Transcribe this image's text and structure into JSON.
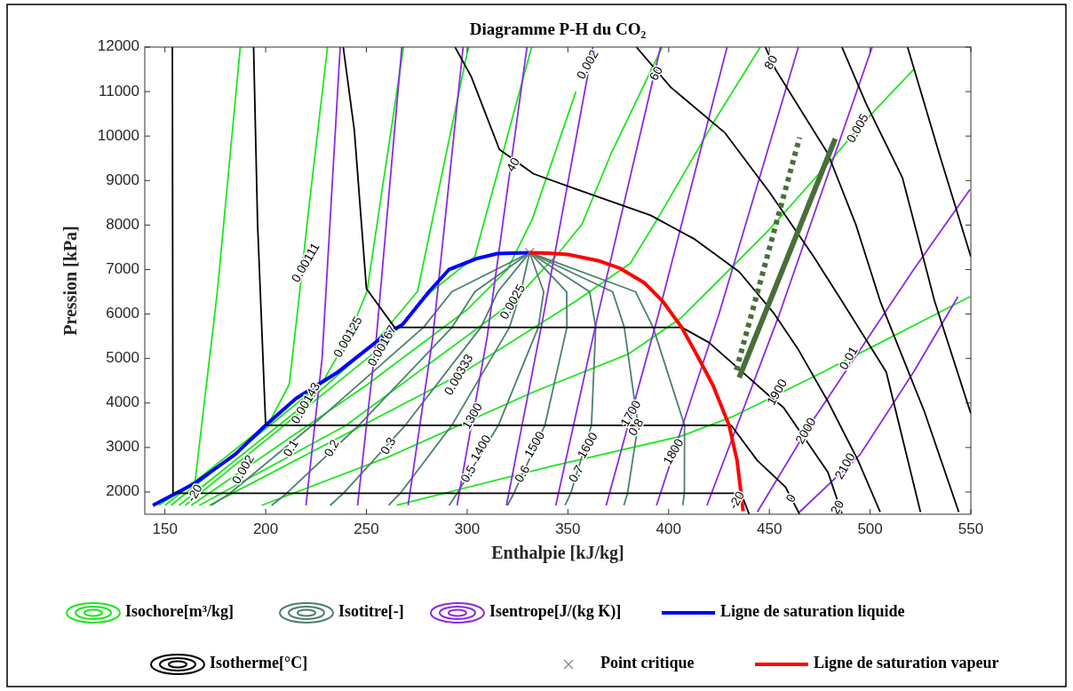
{
  "chart_data": {
    "type": "line",
    "title": "Diagramme P-H du CO₂",
    "xlabel": "Enthalpie [kJ/kg]",
    "ylabel": "Pression [kPa]",
    "xlim": [
      140,
      550
    ],
    "ylim": [
      1500,
      12000
    ],
    "xticks": [
      150,
      200,
      250,
      300,
      350,
      400,
      450,
      500,
      550
    ],
    "yticks": [
      2000,
      3000,
      4000,
      5000,
      6000,
      7000,
      8000,
      9000,
      10000,
      11000,
      12000
    ],
    "legend": "bottom",
    "series": [
      {
        "name": "Isochore[m³/kg]",
        "color": "#1ee61e",
        "x": [
          147,
          165,
          176,
          187.4
        ],
        "values": [
          1700,
          2250,
          6500,
          12000
        ]
      },
      {
        "color": "#1ee61e",
        "x": [
          150,
          201.7,
          211.7,
          215.7,
          221,
          230.7
        ],
        "values": [
          1700,
          3560,
          4420,
          6010,
          8210,
          12000
        ]
      },
      {
        "color": "#1ee61e",
        "x": [
          153,
          228,
          241,
          250.3,
          268.4
        ],
        "values": [
          1700,
          4450,
          5480,
          6510,
          12000
        ]
      },
      {
        "color": "#1ee61e",
        "x": [
          157,
          220,
          255,
          275.4,
          300.6
        ],
        "values": [
          1700,
          3990,
          5400,
          6510,
          12000
        ]
      },
      {
        "color": "#1ee61e",
        "x": [
          160,
          258,
          282,
          303.7,
          332
        ],
        "values": [
          1700,
          5280,
          6500,
          7280,
          12000
        ]
      },
      {
        "color": "#1ee61e",
        "x": [
          163,
          188.9,
          250,
          300,
          320,
          332.4,
          354
        ],
        "values": [
          1700,
          2500,
          4400,
          6100,
          7000,
          8140,
          11000
        ]
      },
      {
        "color": "#1ee61e",
        "x": [
          167,
          240,
          322.7,
          336.6,
          345,
          357,
          371.5,
          396.8
        ],
        "values": [
          1700,
          3500,
          6270,
          6950,
          7350,
          8020,
          9610,
          12000
        ]
      },
      {
        "color": "#1ee61e",
        "x": [
          172,
          296,
          354,
          381,
          395.4,
          423.5,
          445.5
        ],
        "values": [
          1700,
          4630,
          6290,
          7140,
          8210,
          10400,
          12000
        ]
      },
      {
        "color": "#1ee61e",
        "x": [
          198,
          261,
          332.5,
          380,
          405.8,
          423.4,
          450,
          482,
          494,
          507,
          521.7
        ],
        "values": [
          1700,
          2790,
          4240,
          5100,
          5900,
          6690,
          7900,
          9530,
          10170,
          10800,
          11500
        ]
      },
      {
        "color": "#1ee61e",
        "x": [
          265,
          341,
          405.8,
          432,
          450,
          476.7,
          489.5,
          504,
          549.6
        ],
        "values": [
          1700,
          2570,
          3250,
          3700,
          4100,
          4700,
          5000,
          5330,
          6390
        ]
      },
      {
        "name": "Isotitre[-]",
        "color": "#4d7f6e",
        "x": [
          331,
          292.4,
          278.3,
          223.1,
          182.2,
          173
        ],
        "values": [
          7380,
          6500,
          5700,
          3500,
          1970,
          1700
        ]
      },
      {
        "color": "#4d7f6e",
        "x": [
          331,
          303.8,
          292.5,
          246.2,
          210.4,
          203
        ],
        "values": [
          7380,
          6500,
          5700,
          3500,
          1970,
          1700
        ]
      },
      {
        "color": "#4d7f6e",
        "x": [
          331,
          315.2,
          306.8,
          269.3,
          238.6,
          232
        ],
        "values": [
          7380,
          6500,
          5700,
          3500,
          1970,
          1700
        ]
      },
      {
        "color": "#4d7f6e",
        "x": [
          331,
          326.6,
          321,
          292.4,
          266.8,
          261
        ],
        "values": [
          7380,
          6500,
          5700,
          3500,
          1970,
          1700
        ]
      },
      {
        "color": "#4d7f6e",
        "x": [
          331,
          338,
          335.3,
          315.5,
          295,
          291
        ],
        "values": [
          7380,
          6500,
          5700,
          3500,
          1970,
          1700
        ]
      },
      {
        "color": "#4d7f6e",
        "x": [
          331,
          349.4,
          349.5,
          338.6,
          323.2,
          320
        ],
        "values": [
          7380,
          6500,
          5700,
          3500,
          1970,
          1700
        ]
      },
      {
        "color": "#4d7f6e",
        "x": [
          331,
          360.8,
          363.8,
          361.7,
          351.4,
          348.6
        ],
        "values": [
          7380,
          6500,
          5700,
          3500,
          1970,
          1700
        ]
      },
      {
        "color": "#4d7f6e",
        "x": [
          331,
          372.2,
          378,
          384.8,
          379.6,
          377.8
        ],
        "values": [
          7380,
          6500,
          5700,
          3500,
          1970,
          1700
        ]
      },
      {
        "color": "#4d7f6e",
        "x": [
          331,
          383.6,
          392.3,
          407.9,
          407.8,
          407
        ],
        "values": [
          7380,
          6500,
          5700,
          3500,
          1970,
          1700
        ]
      },
      {
        "name": "Isentrope[J/(kg K)]",
        "color": "#8a2be2",
        "x": [
          220,
          228,
          237
        ],
        "values": [
          1700,
          5000,
          12000
        ]
      },
      {
        "color": "#8a2be2",
        "x": [
          245.6,
          255,
          267.6
        ],
        "values": [
          1700,
          5500,
          12000
        ]
      },
      {
        "color": "#8a2be2",
        "x": [
          270.7,
          283,
          298
        ],
        "values": [
          1700,
          5500,
          12000
        ]
      },
      {
        "color": "#8a2be2",
        "x": [
          295,
          310,
          329.7
        ],
        "values": [
          1700,
          5500,
          12000
        ]
      },
      {
        "color": "#8a2be2",
        "x": [
          319.5,
          338,
          362.4
        ],
        "values": [
          1700,
          6000,
          12000
        ]
      },
      {
        "color": "#8a2be2",
        "x": [
          344,
          365,
          396
        ],
        "values": [
          1700,
          6000,
          12000
        ]
      },
      {
        "color": "#8a2be2",
        "x": [
          369,
          395,
          429
        ],
        "values": [
          1700,
          6000,
          12000
        ]
      },
      {
        "color": "#8a2be2",
        "x": [
          394,
          425,
          464.4
        ],
        "values": [
          1700,
          6000,
          12000
        ]
      },
      {
        "color": "#8a2be2",
        "x": [
          419,
          455,
          501
        ],
        "values": [
          1700,
          6000,
          12000
        ]
      },
      {
        "color": "#8a2be2",
        "x": [
          444,
          470,
          521.6,
          549.6
        ],
        "values": [
          1550,
          3500,
          7000,
          8800
        ]
      },
      {
        "color": "#8a2be2",
        "x": [
          465,
          495,
          521.6,
          543.6
        ],
        "values": [
          1550,
          2840,
          4700,
          6390
        ]
      },
      {
        "name": "Ligne de saturation liquide",
        "color": "#0000ff",
        "x": [
          144,
          165,
          185,
          200,
          215,
          236,
          260,
          268,
          281,
          291,
          305,
          315,
          331
        ],
        "values": [
          1700,
          2200,
          2850,
          3500,
          4100,
          4700,
          5555,
          5766,
          6500,
          7000,
          7250,
          7360,
          7380
        ]
      },
      {
        "name": "Isotherme[°C]",
        "color": "#000000",
        "x": [
          153.7,
          154,
          436,
          440
        ],
        "values": [
          12000,
          1970,
          1970,
          1500
        ]
      },
      {
        "color": "#000000",
        "x": [
          194,
          196,
          200,
          431,
          444,
          458,
          465
        ],
        "values": [
          12000,
          8000,
          3500,
          3500,
          2710,
          2110,
          1500
        ]
      },
      {
        "color": "#000000",
        "x": [
          238.5,
          244,
          250,
          264,
          406.5,
          420,
          435,
          450,
          457,
          479,
          486
        ],
        "values": [
          12000,
          10130,
          6570,
          5700,
          5700,
          5360,
          4760,
          4160,
          3900,
          2450,
          1520
        ]
      },
      {
        "color": "#000000",
        "x": [
          294,
          302,
          316,
          333,
          354,
          391,
          413,
          435,
          452,
          464,
          479,
          494,
          505
        ],
        "values": [
          12000,
          11340,
          9700,
          9150,
          8810,
          8220,
          7680,
          6950,
          6030,
          5230,
          4040,
          2710,
          1550
        ]
      },
      {
        "color": "#000000",
        "x": [
          384,
          401,
          428,
          450,
          472,
          486,
          508,
          525
        ],
        "values": [
          12000,
          11100,
          10070,
          8740,
          7290,
          6290,
          4700,
          1550
        ]
      },
      {
        "color": "#000000",
        "x": [
          448,
          453,
          479,
          493,
          505,
          527,
          544
        ],
        "values": [
          12000,
          11500,
          9610,
          8000,
          6290,
          3800,
          1550
        ]
      },
      {
        "color": "#000000",
        "x": [
          486,
          498,
          516,
          532,
          550
        ],
        "values": [
          12000,
          10730,
          9070,
          6290,
          3760
        ]
      },
      {
        "color": "#000000",
        "x": [
          518.6,
          535,
          550
        ],
        "values": [
          12000,
          9500,
          7290
        ]
      },
      {
        "name": "Point critique",
        "type": "scatter",
        "marker": "cross",
        "color": "#808080",
        "x": [
          331
        ],
        "values": [
          7380
        ]
      },
      {
        "name": "Ligne de saturation vapeur",
        "color": "#ff0000",
        "x": [
          331,
          340,
          350,
          365,
          376,
          388,
          397,
          406.5,
          415,
          422,
          430,
          434,
          437
        ],
        "values": [
          7380,
          7370,
          7340,
          7200,
          7025,
          6700,
          6290,
          5700,
          5000,
          4400,
          3500,
          2700,
          1570
        ]
      },
      {
        "color": "#4a6e3a",
        "x": [
          435,
          482.7
        ],
        "values": [
          4570,
          9940
        ]
      },
      {
        "color": "#4a6e3a",
        "line_style": "dotted",
        "x": [
          433.6,
          465
        ],
        "values": [
          4740,
          9970
        ]
      }
    ],
    "annotations": [
      {
        "text": "0.00111",
        "x": 220,
        "y": 7150
      },
      {
        "text": "0.00125",
        "x": 241,
        "y": 5480
      },
      {
        "text": "0.00143",
        "x": 220,
        "y": 3990
      },
      {
        "text": "0.00167",
        "x": 258,
        "y": 5280
      },
      {
        "text": "0.002",
        "x": 189,
        "y": 2500
      },
      {
        "text": "0.0025",
        "x": 322.7,
        "y": 6270
      },
      {
        "text": "0.00333",
        "x": 296,
        "y": 4630
      },
      {
        "text": "0.005",
        "x": 494,
        "y": 10170
      },
      {
        "text": "0.01",
        "x": 489.5,
        "y": 5000
      },
      {
        "text": "0.002",
        "x": 360,
        "y": 11600
      },
      {
        "text": "0.1",
        "x": 212.7,
        "y": 2980
      },
      {
        "text": "0.2",
        "x": 233,
        "y": 2980
      },
      {
        "text": "0.3",
        "x": 261,
        "y": 3030
      },
      {
        "text": "0.5",
        "x": 300.8,
        "y": 2400
      },
      {
        "text": "0.6",
        "x": 327.6,
        "y": 2400
      },
      {
        "text": "0.7",
        "x": 354.3,
        "y": 2400
      },
      {
        "text": "0.8",
        "x": 384,
        "y": 3450
      },
      {
        "text": "1300",
        "x": 302.8,
        "y": 3700
      },
      {
        "text": "1400",
        "x": 307,
        "y": 2980
      },
      {
        "text": "1500",
        "x": 333.7,
        "y": 3060
      },
      {
        "text": "1600",
        "x": 360,
        "y": 3040
      },
      {
        "text": "1700",
        "x": 381.4,
        "y": 3760
      },
      {
        "text": "1800",
        "x": 402.6,
        "y": 2900
      },
      {
        "text": "1900",
        "x": 454,
        "y": 4240
      },
      {
        "text": "2000",
        "x": 468.3,
        "y": 3370
      },
      {
        "text": "2100",
        "x": 487.8,
        "y": 2580
      },
      {
        "text": "-20",
        "x": 165,
        "y": 1970
      },
      {
        "text": "-20",
        "x": 434,
        "y": 1810
      },
      {
        "text": "0",
        "x": 461,
        "y": 1850
      },
      {
        "text": "20",
        "x": 484,
        "y": 1650
      },
      {
        "text": "40",
        "x": 323,
        "y": 9350
      },
      {
        "text": "60",
        "x": 394,
        "y": 11400
      },
      {
        "text": "80",
        "x": 451,
        "y": 11650
      }
    ]
  }
}
